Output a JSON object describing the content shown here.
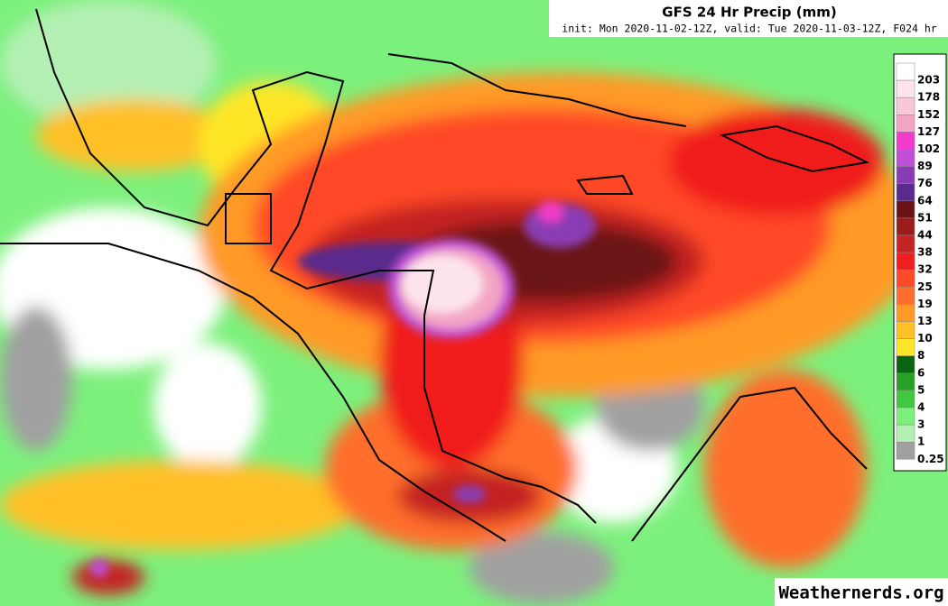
{
  "header": {
    "title": "GFS 24 Hr Precip (mm)",
    "subtitle": "init: Mon 2020-11-02-12Z, valid: Tue 2020-11-03-12Z, F024 hr"
  },
  "legend": [
    {
      "label": "203",
      "color": "#ffffff"
    },
    {
      "label": "178",
      "color": "#fde4ec"
    },
    {
      "label": "152",
      "color": "#f9c8d8"
    },
    {
      "label": "127",
      "color": "#f4a4c4"
    },
    {
      "label": "102",
      "color": "#f03cc8"
    },
    {
      "label": "89",
      "color": "#c050d8"
    },
    {
      "label": "76",
      "color": "#8a3cb4"
    },
    {
      "label": "64",
      "color": "#5a2a8c"
    },
    {
      "label": "51",
      "color": "#6a1418"
    },
    {
      "label": "44",
      "color": "#9a1c1c"
    },
    {
      "label": "38",
      "color": "#c42424"
    },
    {
      "label": "32",
      "color": "#f01e1e"
    },
    {
      "label": "25",
      "color": "#ff4a28"
    },
    {
      "label": "19",
      "color": "#ff6e2c"
    },
    {
      "label": "13",
      "color": "#ff9a28"
    },
    {
      "label": "10",
      "color": "#ffc028"
    },
    {
      "label": "8",
      "color": "#ffe628"
    },
    {
      "label": "6",
      "color": "#0a6410"
    },
    {
      "label": "5",
      "color": "#28a028"
    },
    {
      "label": "4",
      "color": "#40c840"
    },
    {
      "label": "3",
      "color": "#7cf07c"
    },
    {
      "label": "1",
      "color": "#b4f0b4"
    },
    {
      "label": "0.25",
      "color": "#a0a0a0"
    }
  ],
  "watermark": "Weathernerds.org"
}
